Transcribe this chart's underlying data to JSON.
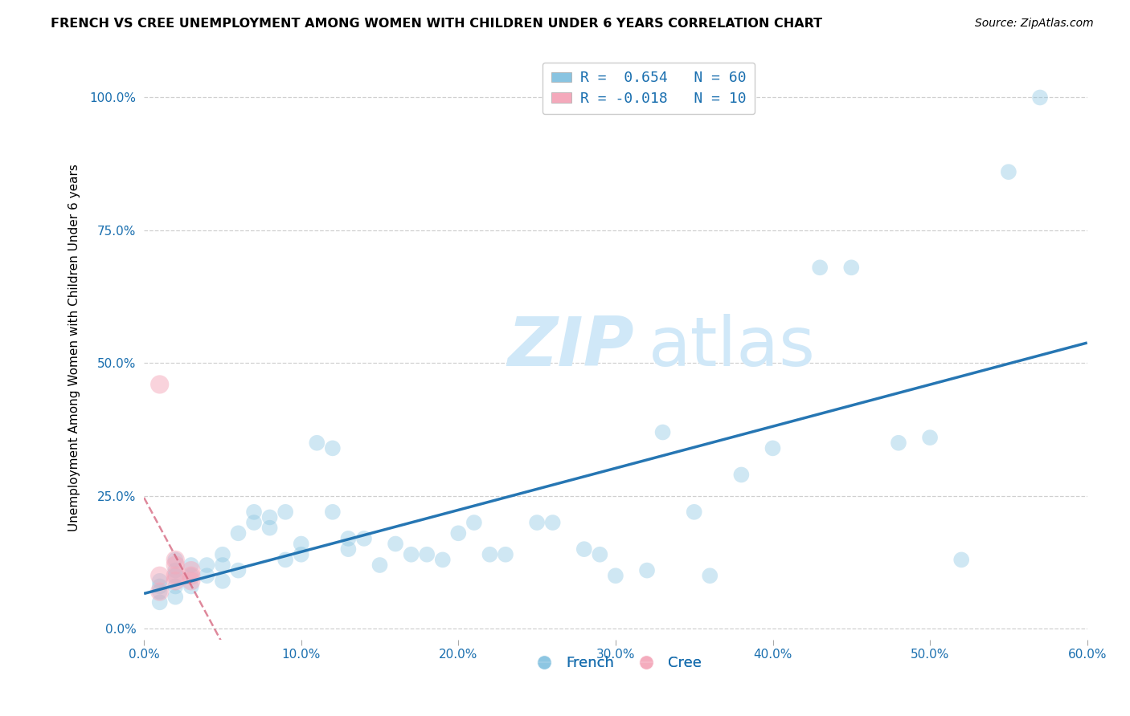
{
  "title": "FRENCH VS CREE UNEMPLOYMENT AMONG WOMEN WITH CHILDREN UNDER 6 YEARS CORRELATION CHART",
  "source": "Source: ZipAtlas.com",
  "ylabel": "Unemployment Among Women with Children Under 6 years",
  "xlim": [
    0.0,
    0.6
  ],
  "ylim": [
    -0.02,
    1.08
  ],
  "xticks": [
    0.0,
    0.1,
    0.2,
    0.3,
    0.4,
    0.5,
    0.6
  ],
  "xtick_labels": [
    "0.0%",
    "10.0%",
    "20.0%",
    "30.0%",
    "40.0%",
    "50.0%",
    "60.0%"
  ],
  "ytick_labels": [
    "0.0%",
    "25.0%",
    "50.0%",
    "75.0%",
    "100.0%"
  ],
  "yticks": [
    0.0,
    0.25,
    0.5,
    0.75,
    1.0
  ],
  "french_R": 0.654,
  "french_N": 60,
  "cree_R": -0.018,
  "cree_N": 10,
  "french_color": "#89c4e1",
  "french_line_color": "#1a6faf",
  "cree_color": "#f4a9bb",
  "cree_line_color": "#d4607a",
  "background_color": "#ffffff",
  "grid_color": "#d0d0d0",
  "watermark_zip": "ZIP",
  "watermark_atlas": "atlas",
  "watermark_color": "#d0e8f8",
  "french_scatter_x": [
    0.01,
    0.01,
    0.01,
    0.01,
    0.02,
    0.02,
    0.02,
    0.02,
    0.02,
    0.03,
    0.03,
    0.03,
    0.04,
    0.04,
    0.05,
    0.05,
    0.05,
    0.06,
    0.06,
    0.07,
    0.07,
    0.08,
    0.08,
    0.09,
    0.09,
    0.1,
    0.1,
    0.11,
    0.12,
    0.12,
    0.13,
    0.13,
    0.14,
    0.15,
    0.16,
    0.17,
    0.18,
    0.19,
    0.2,
    0.21,
    0.22,
    0.23,
    0.25,
    0.26,
    0.28,
    0.29,
    0.3,
    0.32,
    0.33,
    0.35,
    0.36,
    0.38,
    0.4,
    0.43,
    0.45,
    0.48,
    0.5,
    0.52,
    0.55,
    0.57
  ],
  "french_scatter_y": [
    0.05,
    0.07,
    0.08,
    0.09,
    0.06,
    0.08,
    0.1,
    0.11,
    0.13,
    0.08,
    0.1,
    0.12,
    0.1,
    0.12,
    0.09,
    0.12,
    0.14,
    0.11,
    0.18,
    0.2,
    0.22,
    0.19,
    0.21,
    0.13,
    0.22,
    0.14,
    0.16,
    0.35,
    0.22,
    0.34,
    0.15,
    0.17,
    0.17,
    0.12,
    0.16,
    0.14,
    0.14,
    0.13,
    0.18,
    0.2,
    0.14,
    0.14,
    0.2,
    0.2,
    0.15,
    0.14,
    0.1,
    0.11,
    0.37,
    0.22,
    0.1,
    0.29,
    0.34,
    0.68,
    0.68,
    0.35,
    0.36,
    0.13,
    0.86,
    1.0
  ],
  "cree_scatter_x": [
    0.01,
    0.01,
    0.02,
    0.02,
    0.02,
    0.02,
    0.03,
    0.03,
    0.03,
    0.01
  ],
  "cree_scatter_y": [
    0.07,
    0.1,
    0.09,
    0.1,
    0.12,
    0.13,
    0.09,
    0.1,
    0.11,
    0.46
  ],
  "title_fontsize": 11.5,
  "axis_label_fontsize": 11,
  "tick_fontsize": 11,
  "legend_fontsize": 13,
  "source_fontsize": 10,
  "scatter_size": 200,
  "scatter_alpha": 0.4,
  "line_alpha": 0.95
}
